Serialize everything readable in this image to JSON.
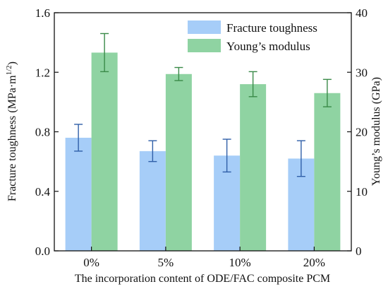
{
  "chart_data": {
    "type": "bar",
    "categories": [
      "0%",
      "5%",
      "10%",
      "20%"
    ],
    "xlabel": "The incorporation content of ODE/FAC composite PCM",
    "ylabel_left": "Fracture toughness (MPa·m",
    "ylabel_left_sup": "1/2",
    "ylabel_left_end": ")",
    "ylabel_right": "Young’s modulus (GPa)",
    "ylim_left": [
      0,
      1.6
    ],
    "ylim_right": [
      0,
      40
    ],
    "yticks_left": [
      "0.0",
      "0.4",
      "0.8",
      "1.2",
      "1.6"
    ],
    "yticks_right": [
      "0",
      "10",
      "20",
      "30",
      "40"
    ],
    "legend_position": "top-right",
    "grid": false,
    "series": [
      {
        "name": "Fracture toughness",
        "axis": "left",
        "color": "#a6cdf8",
        "error_color": "#2f5fa8",
        "values": [
          0.76,
          0.67,
          0.64,
          0.62
        ],
        "errors": [
          0.09,
          0.07,
          0.11,
          0.12
        ]
      },
      {
        "name": "Young’s modulus",
        "axis": "right",
        "color": "#8fd3a2",
        "error_color": "#3a8a48",
        "values": [
          33.3,
          29.7,
          28.0,
          26.5
        ],
        "errors": [
          3.2,
          1.1,
          2.1,
          2.3
        ]
      }
    ]
  }
}
